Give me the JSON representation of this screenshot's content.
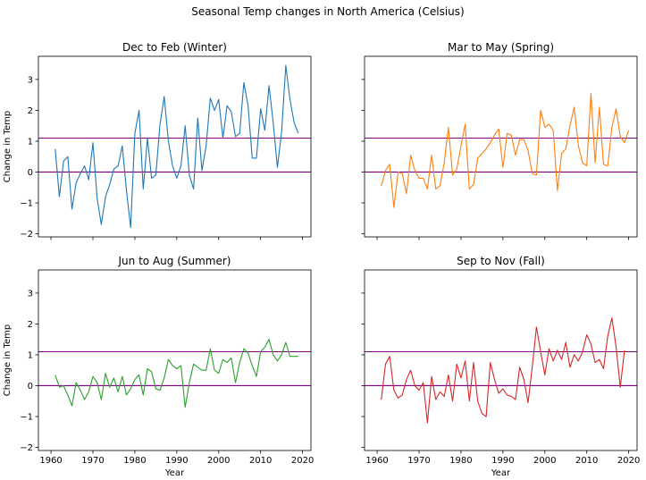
{
  "figure": {
    "suptitle": "Seasonal Temp changes in North America (Celsius)"
  },
  "chart_data": [
    {
      "type": "line",
      "title": "Dec to Feb (Winter)",
      "xlabel": "",
      "ylabel": "Change in Temp",
      "xlim": [
        1957,
        2022
      ],
      "ylim": [
        -2.1,
        3.75
      ],
      "xticks": [
        1960,
        1970,
        1980,
        1990,
        2000,
        2010,
        2020
      ],
      "yticks": [
        -2,
        -1,
        0,
        1,
        2,
        3
      ],
      "show_xticklabels": false,
      "show_yticklabels": true,
      "series_color": "#1f77b4",
      "hlines": [
        {
          "y": 0,
          "color": "#800080"
        },
        {
          "y": 1.1,
          "color": "#800080"
        }
      ],
      "x_start": 1961,
      "values": [
        0.75,
        -0.8,
        0.35,
        0.5,
        -1.2,
        -0.35,
        -0.05,
        0.2,
        -0.25,
        0.95,
        -0.85,
        -1.7,
        -0.8,
        -0.4,
        0.1,
        0.2,
        0.85,
        -0.6,
        -1.8,
        1.25,
        2.0,
        -0.55,
        1.1,
        -0.2,
        -0.1,
        1.55,
        2.45,
        1.0,
        0.2,
        -0.2,
        0.2,
        1.5,
        -0.1,
        -0.55,
        1.75,
        0.05,
        0.85,
        2.4,
        2.0,
        2.35,
        1.1,
        2.15,
        1.95,
        1.15,
        1.25,
        2.9,
        2.15,
        0.45,
        0.45,
        2.05,
        1.35,
        2.8,
        1.6,
        0.15,
        1.3,
        3.45,
        2.35,
        1.6,
        1.25
      ]
    },
    {
      "type": "line",
      "title": "Mar to May (Spring)",
      "xlabel": "",
      "ylabel": "",
      "xlim": [
        1957,
        2022
      ],
      "ylim": [
        -2.1,
        3.75
      ],
      "xticks": [
        1960,
        1970,
        1980,
        1990,
        2000,
        2010,
        2020
      ],
      "yticks": [
        -2,
        -1,
        0,
        1,
        2,
        3
      ],
      "show_xticklabels": false,
      "show_yticklabels": false,
      "series_color": "#ff7f0e",
      "hlines": [
        {
          "y": 0,
          "color": "#800080"
        },
        {
          "y": 1.1,
          "color": "#800080"
        }
      ],
      "x_start": 1961,
      "values": [
        -0.45,
        0.05,
        0.25,
        -1.15,
        0.0,
        -0.05,
        -0.7,
        0.55,
        0.05,
        -0.2,
        -0.2,
        -0.55,
        0.55,
        -0.55,
        -0.45,
        0.3,
        1.45,
        -0.1,
        0.1,
        0.85,
        1.55,
        -0.55,
        -0.4,
        0.45,
        0.6,
        0.75,
        0.95,
        1.2,
        1.4,
        0.15,
        1.25,
        1.2,
        0.55,
        1.05,
        1.05,
        0.7,
        -0.05,
        -0.1,
        2.0,
        1.45,
        1.55,
        1.35,
        -0.6,
        0.6,
        0.75,
        1.5,
        2.1,
        0.85,
        0.3,
        0.2,
        2.55,
        0.3,
        2.1,
        0.25,
        0.2,
        1.45,
        2.05,
        1.15,
        0.95,
        1.35
      ]
    },
    {
      "type": "line",
      "title": "Jun to Aug (Summer)",
      "xlabel": "Year",
      "ylabel": "Change in Temp",
      "xlim": [
        1957,
        2022
      ],
      "ylim": [
        -2.1,
        3.75
      ],
      "xticks": [
        1960,
        1970,
        1980,
        1990,
        2000,
        2010,
        2020
      ],
      "yticks": [
        -2,
        -1,
        0,
        1,
        2,
        3
      ],
      "show_xticklabels": true,
      "show_yticklabels": true,
      "series_color": "#2ca02c",
      "hlines": [
        {
          "y": 0,
          "color": "#800080"
        },
        {
          "y": 1.1,
          "color": "#800080"
        }
      ],
      "x_start": 1961,
      "values": [
        0.35,
        -0.05,
        0.0,
        -0.3,
        -0.65,
        0.1,
        -0.15,
        -0.45,
        -0.2,
        0.3,
        0.1,
        -0.45,
        0.4,
        -0.05,
        0.25,
        -0.2,
        0.3,
        -0.3,
        -0.1,
        0.2,
        0.35,
        -0.3,
        0.55,
        0.45,
        -0.1,
        -0.15,
        0.25,
        0.85,
        0.65,
        0.55,
        0.65,
        -0.7,
        0.1,
        0.7,
        0.6,
        0.5,
        0.5,
        1.2,
        0.5,
        0.4,
        0.85,
        0.75,
        0.9,
        0.1,
        0.75,
        1.2,
        1.05,
        0.65,
        0.3,
        1.1,
        1.25,
        1.5,
        1.0,
        0.8,
        1.0,
        1.4,
        0.95,
        0.95,
        0.95
      ]
    },
    {
      "type": "line",
      "title": "Sep to Nov (Fall)",
      "xlabel": "Year",
      "ylabel": "",
      "xlim": [
        1957,
        2022
      ],
      "ylim": [
        -2.1,
        3.75
      ],
      "xticks": [
        1960,
        1970,
        1980,
        1990,
        2000,
        2010,
        2020
      ],
      "yticks": [
        -2,
        -1,
        0,
        1,
        2,
        3
      ],
      "show_xticklabels": true,
      "show_yticklabels": false,
      "series_color": "#d62728",
      "hlines": [
        {
          "y": 0,
          "color": "#800080"
        },
        {
          "y": 1.1,
          "color": "#800080"
        }
      ],
      "x_start": 1961,
      "values": [
        -0.45,
        0.7,
        0.95,
        -0.15,
        -0.4,
        -0.3,
        0.2,
        0.5,
        0.0,
        -0.15,
        0.1,
        -1.2,
        0.3,
        -0.45,
        -0.2,
        -0.35,
        0.35,
        -0.5,
        0.7,
        0.25,
        0.8,
        -0.5,
        0.75,
        -0.5,
        -0.9,
        -1.0,
        0.75,
        0.2,
        -0.25,
        -0.1,
        -0.3,
        -0.35,
        -0.45,
        0.6,
        0.2,
        -0.55,
        0.6,
        1.9,
        1.1,
        0.35,
        1.2,
        0.8,
        1.15,
        0.85,
        1.4,
        0.6,
        1.0,
        0.8,
        1.1,
        1.65,
        1.35,
        0.75,
        0.85,
        0.55,
        1.6,
        2.2,
        1.25,
        -0.05,
        1.15
      ]
    }
  ]
}
